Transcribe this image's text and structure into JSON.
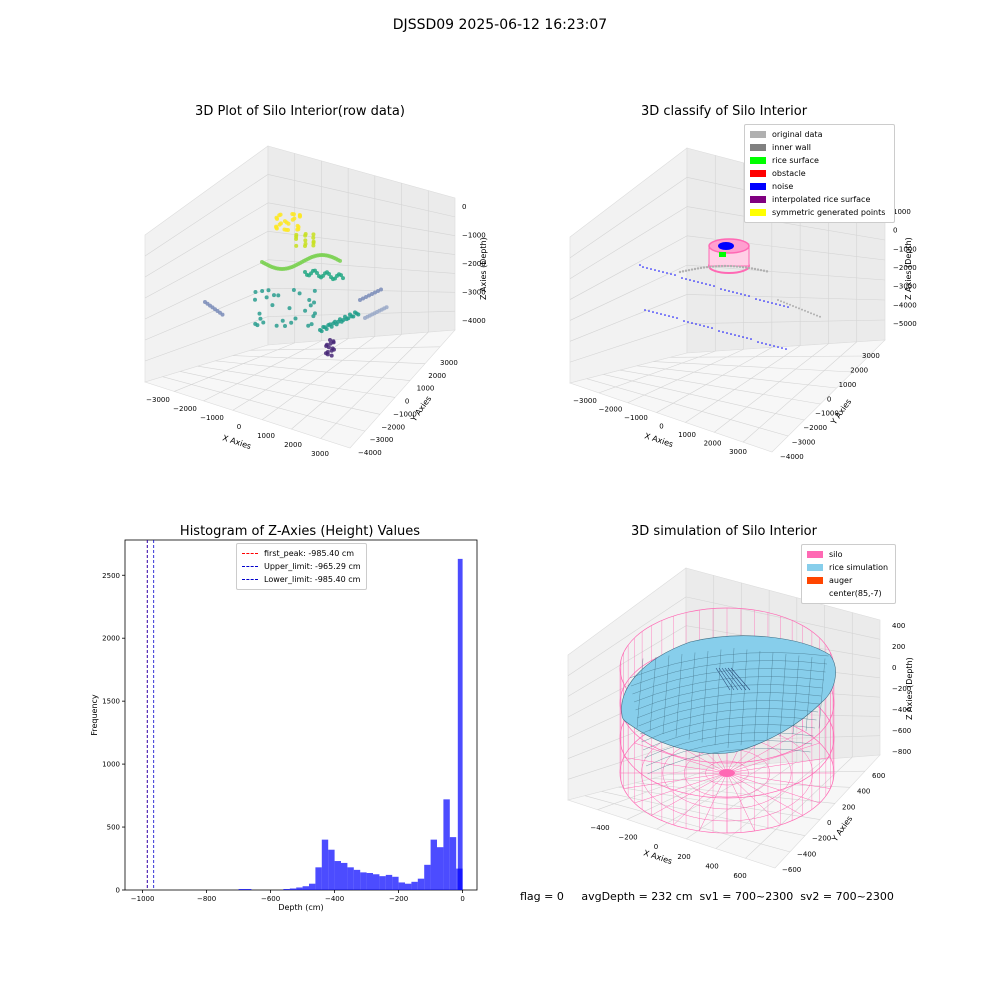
{
  "suptitle": "DJSSD09 2025-06-12 16:23:07",
  "status_text": "flag = 0     avgDepth = 232 cm  sv1 = 700~2300  sv2 = 700~2300",
  "chart_data": [
    {
      "type": "scatter",
      "dimensions": 3,
      "title": "3D Plot of Silo Interior(row data)",
      "xlabel": "X Axies",
      "ylabel": "Y Axies",
      "zlabel": "Z Axies (Depth)",
      "xticks": [
        "−3000",
        "−2000",
        "−1000",
        "0",
        "1000",
        "2000",
        "3000"
      ],
      "yticks": [
        "3000",
        "2000",
        "1000",
        "0",
        "−1000",
        "−2000",
        "−3000",
        "−4000"
      ],
      "zticks": [
        "0",
        "−1000",
        "−2000",
        "−3000",
        "−4000"
      ],
      "colormap": "viridis",
      "colors": {
        "high": "#fde725",
        "mid": "#35b779",
        "low": "#440154"
      }
    },
    {
      "type": "scatter",
      "dimensions": 3,
      "title": "3D classify of Silo Interior",
      "xlabel": "X Axies",
      "ylabel": "Y Axies",
      "zlabel": "Z Axies (Depth)",
      "xticks": [
        "−3000",
        "−2000",
        "−1000",
        "0",
        "1000",
        "2000",
        "3000"
      ],
      "yticks": [
        "3000",
        "2000",
        "1000",
        "0",
        "−1000",
        "−2000",
        "−3000",
        "−4000"
      ],
      "zticks": [
        "1000",
        "0",
        "−1000",
        "−2000",
        "−3000",
        "−4000",
        "−5000"
      ],
      "legend": [
        {
          "name": "original data",
          "color": "#b0b0b0"
        },
        {
          "name": "inner wall",
          "color": "#808080"
        },
        {
          "name": "rice surface",
          "color": "#00ff00"
        },
        {
          "name": "obstacle",
          "color": "#ff0000"
        },
        {
          "name": "noise",
          "color": "#0000ff"
        },
        {
          "name": "interpolated rice surface",
          "color": "#800080"
        },
        {
          "name": "symmetric generated points",
          "color": "#ffff00"
        }
      ]
    },
    {
      "type": "bar",
      "title": "Histogram of Z-Axies (Height) Values",
      "xlabel": "Depth (cm)",
      "ylabel": "Frequency",
      "xlim": [
        -1055,
        45
      ],
      "ylim": [
        0,
        2780
      ],
      "xticks": [
        -1000,
        -800,
        -600,
        -400,
        -200,
        0
      ],
      "xtick_labels": [
        "−1000",
        "−800",
        "−600",
        "−400",
        "−200",
        "0"
      ],
      "yticks": [
        0,
        500,
        1000,
        1500,
        2000,
        2500
      ],
      "bar_color": "#0000ff",
      "bin_width": 20,
      "bin_left_edges": [
        -700,
        -680,
        -560,
        -540,
        -520,
        -500,
        -480,
        -460,
        -440,
        -420,
        -400,
        -380,
        -360,
        -340,
        -320,
        -300,
        -280,
        -260,
        -240,
        -220,
        -200,
        -180,
        -160,
        -140,
        -120,
        -100,
        -80,
        -60,
        -40,
        -20
      ],
      "values": [
        8,
        8,
        8,
        12,
        20,
        30,
        50,
        180,
        400,
        320,
        230,
        215,
        180,
        160,
        140,
        135,
        125,
        110,
        120,
        105,
        60,
        50,
        65,
        90,
        200,
        400,
        340,
        720,
        420,
        170
      ],
      "last_bin": {
        "left": -15,
        "width": 15,
        "value": 2630
      },
      "legend_position": "upper center",
      "lines": [
        {
          "name": "first_peak: -985.40 cm",
          "x": -985.4,
          "color": "#ff0000"
        },
        {
          "name": "Upper_limit: -965.29 cm",
          "x": -965.29,
          "color": "#0000cc"
        },
        {
          "name": "Lower_limit: -985.40 cm",
          "x": -985.4,
          "color": "#0000cc"
        }
      ]
    },
    {
      "type": "surface",
      "dimensions": 3,
      "title": "3D simulation of Silo Interior",
      "xlabel": "X Axies",
      "ylabel": "Y Axies",
      "zlabel": "Z Axies (Depth)",
      "xticks": [
        "−400",
        "−200",
        "0",
        "200",
        "400",
        "600"
      ],
      "yticks": [
        "600",
        "400",
        "200",
        "0",
        "−200",
        "−400",
        "−600"
      ],
      "zticks": [
        "400",
        "200",
        "0",
        "−200",
        "−400",
        "−600",
        "−800"
      ],
      "legend": [
        {
          "name": "silo",
          "color": "#ff69b4"
        },
        {
          "name": "rice simulation",
          "color": "#87ceeb"
        },
        {
          "name": "auger",
          "color": "#ff4500"
        },
        {
          "name": "center(85,-7)",
          "color": "#ffffff"
        }
      ]
    }
  ]
}
